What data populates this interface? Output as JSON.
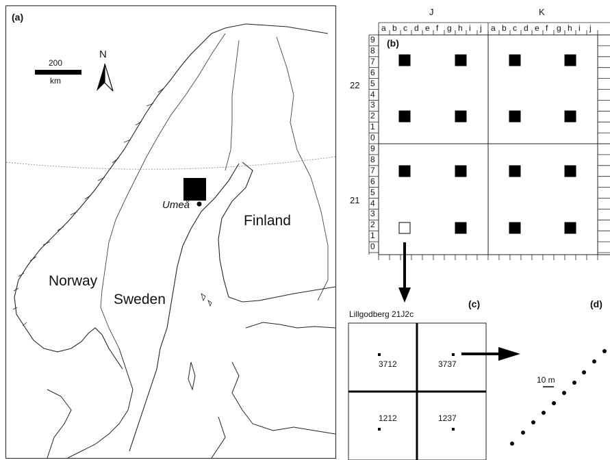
{
  "panel_a": {
    "label": "(a)",
    "scale_value": "200",
    "scale_unit": "km",
    "north_symbol": "N",
    "countries": [
      "Norway",
      "Sweden",
      "Finland"
    ],
    "city": "Umeå"
  },
  "panel_b": {
    "label": "(b)",
    "col_groups": [
      "J",
      "K"
    ],
    "col_letters": [
      "a",
      "b",
      "c",
      "d",
      "e",
      "f",
      "g",
      "h",
      "i",
      "j"
    ],
    "row_groups": [
      "22",
      "21"
    ],
    "row_digits": [
      "0",
      "1",
      "2",
      "3",
      "4",
      "5",
      "6",
      "7",
      "8",
      "9"
    ]
  },
  "panel_c": {
    "label": "(c)",
    "title": "Lillgodberg 21J2c",
    "plots": [
      "3712",
      "3737",
      "1212",
      "1237"
    ]
  },
  "panel_d": {
    "label": "(d)",
    "scale": "10 m"
  }
}
